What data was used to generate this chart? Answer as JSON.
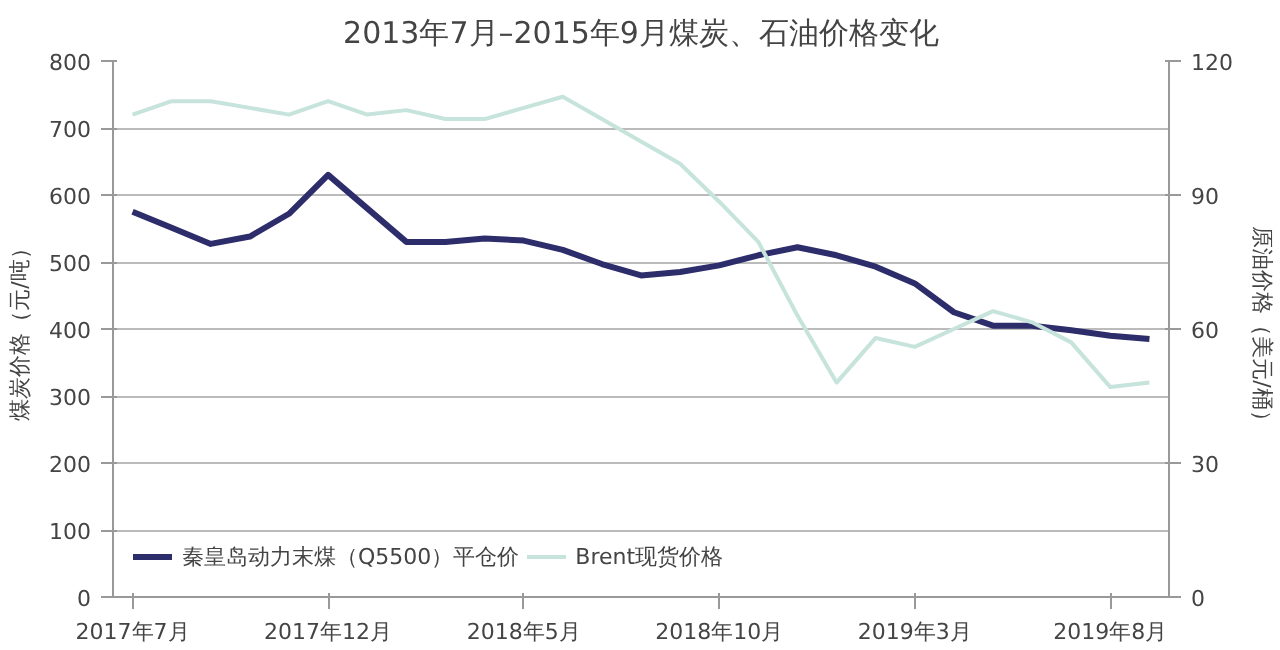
{
  "chart_data": {
    "type": "line",
    "title": "2013年7月–2015年9月煤炭、石油价格变化",
    "ylabel": "煤炭价格（元/吨）",
    "y2label": "原油价格（美元/桶）",
    "categories": [
      "2017年7月",
      null,
      null,
      null,
      null,
      "2017年12月",
      null,
      null,
      null,
      null,
      "2018年5月",
      null,
      null,
      null,
      null,
      "2018年10月",
      null,
      null,
      null,
      null,
      "2019年3月",
      null,
      null,
      null,
      null,
      "2019年8月",
      null
    ],
    "ylim": [
      0,
      800
    ],
    "yticks": [
      0,
      100,
      200,
      300,
      400,
      500,
      600,
      700,
      800
    ],
    "y2lim": [
      0,
      120
    ],
    "y2ticks": [
      0,
      30,
      60,
      90,
      120
    ],
    "grid": "y",
    "legend": "bottom left",
    "marker": "none",
    "line_style": "solid",
    "series": [
      {
        "name": "秦皇岛动力末煤（Q5500）平仓价",
        "color": "#2e2d6b",
        "values": [
          575,
          551,
          527,
          538,
          572,
          630,
          580,
          530,
          530,
          535,
          532,
          518,
          497,
          480,
          485,
          495,
          510,
          522,
          510,
          493,
          468,
          425,
          405,
          405,
          398,
          390,
          385
        ]
      },
      {
        "name": "Brent现货价格",
        "color": "#c6e3dc",
        "axis": "y2",
        "values": [
          108,
          111,
          111,
          109.5,
          108,
          111,
          108,
          109,
          107,
          107,
          109.5,
          112,
          107,
          102,
          97,
          88.5,
          79.5,
          63,
          48,
          58,
          56,
          60,
          64,
          61.5,
          57,
          47,
          48
        ]
      }
    ]
  }
}
